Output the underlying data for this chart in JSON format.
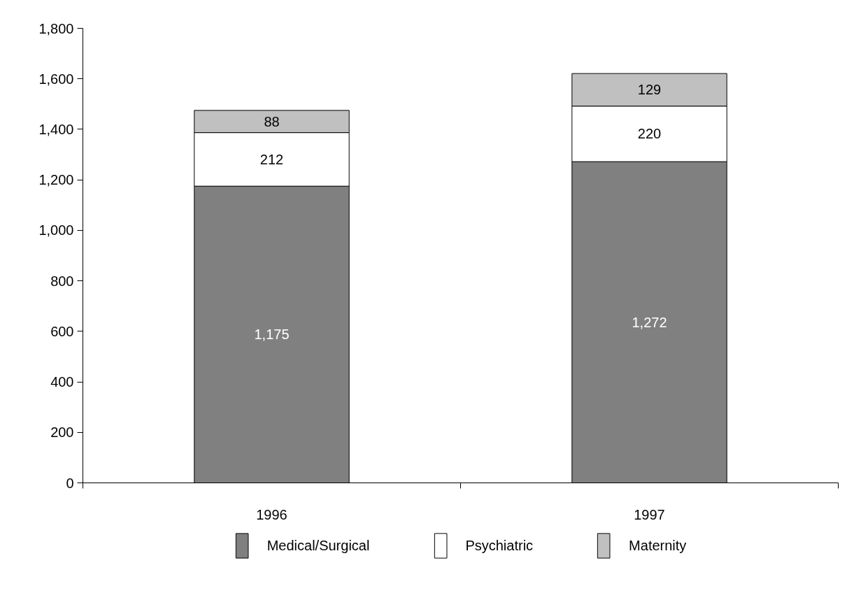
{
  "chart_data": {
    "type": "bar",
    "stacked": true,
    "categories": [
      "1996",
      "1997"
    ],
    "series": [
      {
        "name": "Medical/Surgical",
        "color": "#808080",
        "values": [
          1175,
          1272
        ],
        "value_labels": [
          "1,175",
          "1,272"
        ]
      },
      {
        "name": "Psychiatric",
        "color": "#ffffff",
        "values": [
          212,
          220
        ],
        "value_labels": [
          "212",
          "220"
        ]
      },
      {
        "name": "Maternity",
        "color": "#c0c0c0",
        "values": [
          88,
          129
        ],
        "value_labels": [
          "88",
          "129"
        ]
      }
    ],
    "ylim": [
      0,
      1800
    ],
    "yticks": [
      {
        "value": 0,
        "label": "0"
      },
      {
        "value": 200,
        "label": "200"
      },
      {
        "value": 400,
        "label": "400"
      },
      {
        "value": 600,
        "label": "600"
      },
      {
        "value": 800,
        "label": "800"
      },
      {
        "value": 1000,
        "label": "1,000"
      },
      {
        "value": 1200,
        "label": "1,200"
      },
      {
        "value": 1400,
        "label": "1,400"
      },
      {
        "value": 1600,
        "label": "1,600"
      },
      {
        "value": 1800,
        "label": "1,800"
      }
    ],
    "legend": "bottom",
    "grid": false
  }
}
